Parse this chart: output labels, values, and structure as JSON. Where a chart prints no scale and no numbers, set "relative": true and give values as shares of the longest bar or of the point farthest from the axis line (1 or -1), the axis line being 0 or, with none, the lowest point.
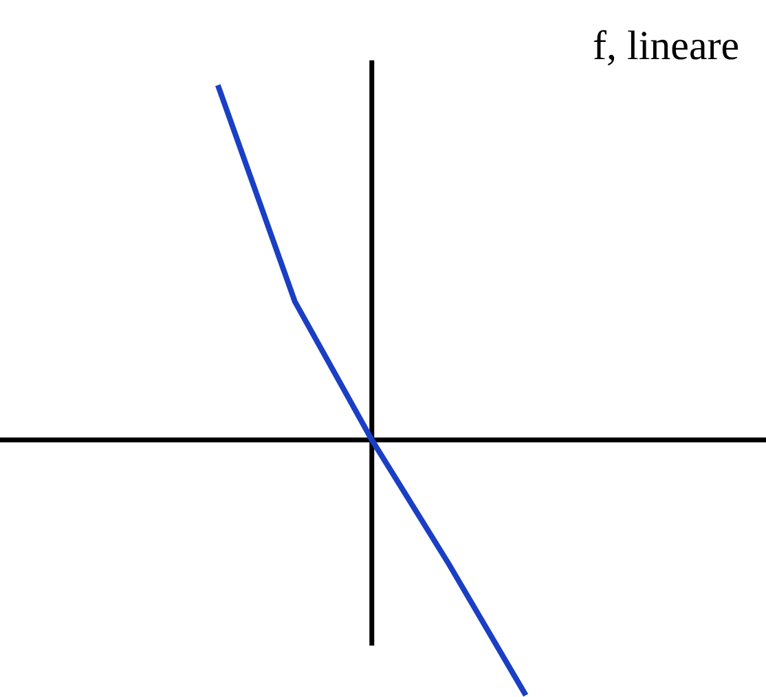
{
  "chart_data": {
    "type": "line",
    "title": "f, lineare",
    "relative": true,
    "categories": [
      null,
      null,
      null,
      null,
      null
    ],
    "series": [
      {
        "color": "#1a3fc4",
        "values": [
          1,
          0.39,
          0,
          -0.35,
          -0.72
        ]
      }
    ],
    "legend": false,
    "marker": "none",
    "line_style": "solid"
  }
}
